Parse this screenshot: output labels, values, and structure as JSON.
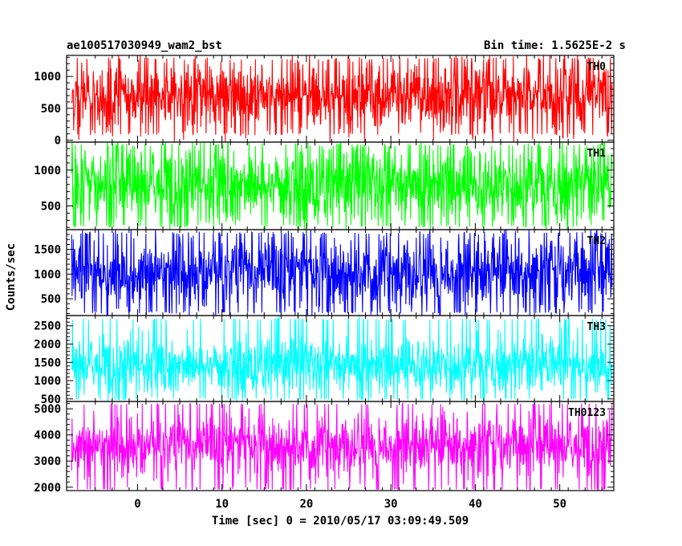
{
  "title_left": "ae100517030949_wam2_bst",
  "title_right": "Bin time: 1.5625E-2 s",
  "chart_data": {
    "type": "line",
    "xlabel": "Time [sec] 0 = 2010/05/17 03:09:49.509",
    "ylabel": "Counts/sec",
    "x_range": [
      -8.4,
      56.4
    ],
    "x_ticks": [
      0,
      10,
      20,
      30,
      40,
      50
    ],
    "bin_time_sec": 0.015625,
    "series": [
      {
        "name": "TH0",
        "color": "#ff0000",
        "ylim": [
          -30,
          1330
        ],
        "y_ticks": [
          0,
          500,
          1000
        ],
        "data_x_range": [
          -7.8,
          56.2
        ],
        "typical_range": [
          80,
          1300
        ],
        "mean": 690,
        "sigma": 260
      },
      {
        "name": "TH1",
        "color": "#00ff00",
        "ylim": [
          170,
          1390
        ],
        "y_ticks": [
          500,
          1000
        ],
        "data_x_range": [
          -7.8,
          56.2
        ],
        "typical_range": [
          200,
          1370
        ],
        "mean": 790,
        "sigma": 270
      },
      {
        "name": "TH2",
        "color": "#0000ff",
        "ylim": [
          160,
          1900
        ],
        "y_ticks": [
          500,
          1000,
          1500
        ],
        "data_x_range": [
          -7.8,
          56.2
        ],
        "typical_range": [
          200,
          1850
        ],
        "mean": 1020,
        "sigma": 370
      },
      {
        "name": "TH3",
        "color": "#00ffff",
        "ylim": [
          430,
          2780
        ],
        "y_ticks": [
          500,
          1000,
          1500,
          2000,
          2500
        ],
        "data_x_range": [
          -7.8,
          56.2
        ],
        "typical_range": [
          470,
          2700
        ],
        "mean": 1420,
        "sigma": 380
      },
      {
        "name": "TH0123",
        "color": "#ff00ff",
        "ylim": [
          1870,
          5280
        ],
        "y_ticks": [
          2000,
          3000,
          4000,
          5000
        ],
        "data_x_range": [
          -7.8,
          56.2
        ],
        "typical_range": [
          1900,
          5200
        ],
        "mean": 3560,
        "sigma": 560
      }
    ]
  }
}
